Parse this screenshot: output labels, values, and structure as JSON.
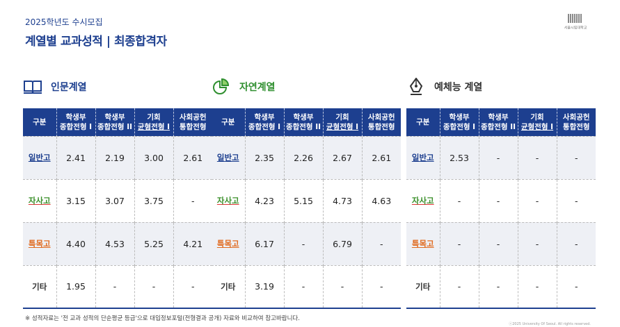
{
  "header": {
    "subtitle": "2025학년도 수시모집",
    "title": "계열별 교과성적 | 최종합격자",
    "logo_text": "서울시립대학교"
  },
  "columns": {
    "category": "구분",
    "col1_line1": "학생부",
    "col1_line2": "종합전형 I",
    "col2_line1": "학생부",
    "col2_line2": "종합전형 II",
    "col3_line1": "기회",
    "col3_line2": "균형전형 I",
    "col4_line1": "사회공헌",
    "col4_line2": "통합전형"
  },
  "groups": [
    {
      "title": "인문계열",
      "title_color": "#1d3f8f",
      "icon": "open-book-icon",
      "rows": [
        {
          "label": "일반고",
          "values": [
            "2.41",
            "2.19",
            "3.00",
            "2.61"
          ]
        },
        {
          "label": "자사고",
          "values": [
            "3.15",
            "3.07",
            "3.75",
            "-"
          ]
        },
        {
          "label": "특목고",
          "values": [
            "4.40",
            "4.53",
            "5.25",
            "4.21"
          ]
        },
        {
          "label": "기타",
          "values": [
            "1.95",
            "-",
            "-",
            "-"
          ]
        }
      ]
    },
    {
      "title": "자연계열",
      "title_color": "#2f8f2f",
      "icon": "pie-chart-icon",
      "rows": [
        {
          "label": "일반고",
          "values": [
            "2.35",
            "2.26",
            "2.67",
            "2.61"
          ]
        },
        {
          "label": "자사고",
          "values": [
            "4.23",
            "5.15",
            "4.73",
            "4.63"
          ]
        },
        {
          "label": "특목고",
          "values": [
            "6.17",
            "-",
            "6.79",
            "-"
          ]
        },
        {
          "label": "기타",
          "values": [
            "3.19",
            "-",
            "-",
            "-"
          ]
        }
      ]
    },
    {
      "title": "예체능 계열",
      "title_color": "#333333",
      "icon": "pen-nib-icon",
      "rows": [
        {
          "label": "일반고",
          "values": [
            "2.53",
            "-",
            "-",
            "-"
          ]
        },
        {
          "label": "자사고",
          "values": [
            "-",
            "-",
            "-",
            "-"
          ]
        },
        {
          "label": "특목고",
          "values": [
            "-",
            "-",
            "-",
            "-"
          ]
        },
        {
          "label": "기타",
          "values": [
            "-",
            "-",
            "-",
            "-"
          ]
        }
      ]
    }
  ],
  "footnote": "※ 성적자료는 '전 교과 성적의 단순평균 등급'으로 대입정보포털(전형결과 공개) 자료와 비교하여 참고바랍니다.",
  "copyright": "ⓒ2025 University Of Seoul. All rights reserved."
}
